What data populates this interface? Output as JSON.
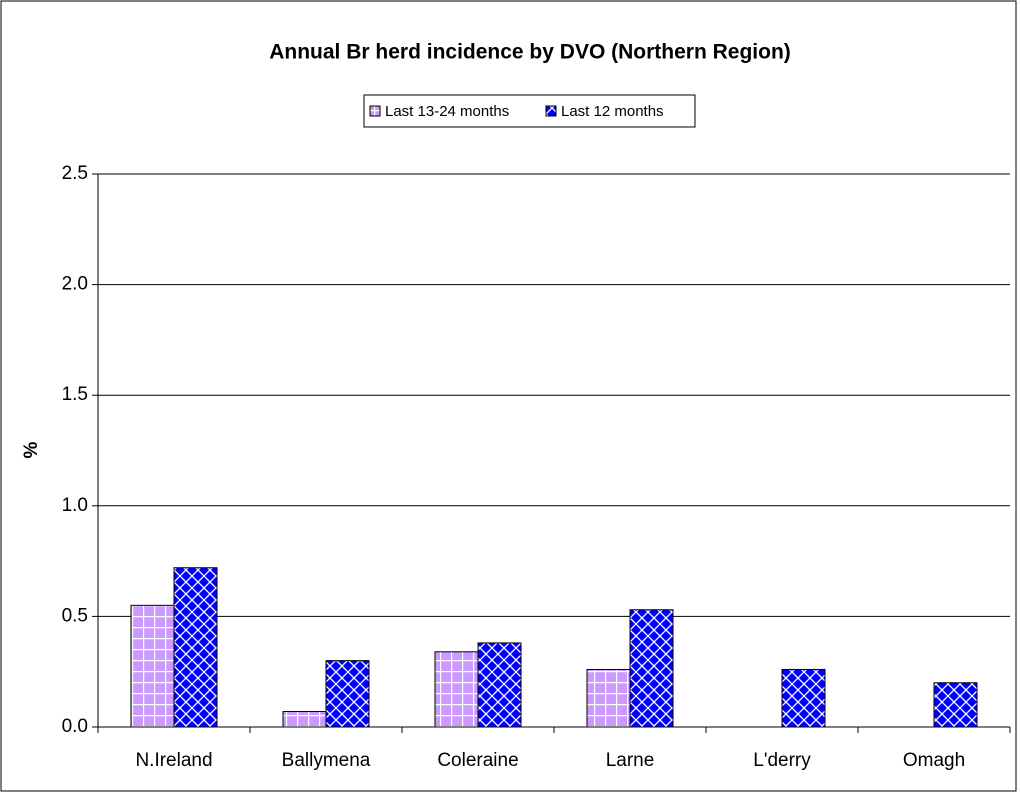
{
  "chart_data": {
    "type": "bar",
    "title": "Annual Br herd incidence by DVO (Northern Region)",
    "y_label": "%",
    "categories": [
      "N.Ireland",
      "Ballymena",
      "Coleraine",
      "Larne",
      "L'derry",
      "Omagh"
    ],
    "series": [
      {
        "name": "Last 13-24 months",
        "color": "#cc99ff",
        "values": [
          0.55,
          0.07,
          0.34,
          0.26,
          0,
          0
        ]
      },
      {
        "name": "Last 12 months",
        "color": "#0000ff",
        "values": [
          0.72,
          0.3,
          0.38,
          0.53,
          0.26,
          0.2
        ]
      }
    ],
    "ylim": [
      0,
      2.5
    ],
    "yticks": [
      {
        "value": 0,
        "label": "0.0"
      },
      {
        "value": 0.5,
        "label": "0.5"
      },
      {
        "value": 1,
        "label": "1.0"
      },
      {
        "value": 1.5,
        "label": "1.5"
      },
      {
        "value": 2,
        "label": "2.0"
      },
      {
        "value": 2.5,
        "label": "2.5"
      }
    ],
    "grid": true,
    "legend": "top"
  }
}
